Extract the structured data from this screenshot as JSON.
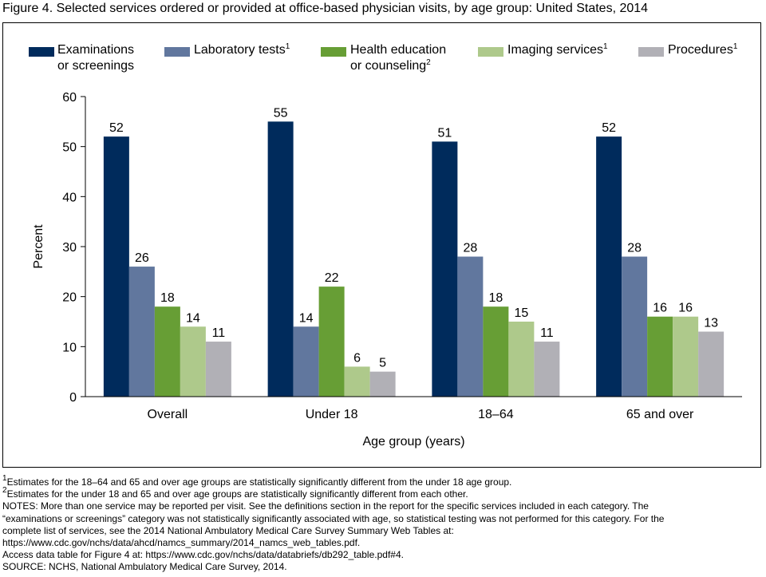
{
  "title": "Figure 4. Selected services ordered or provided at office-based physician visits, by age group: United States, 2014",
  "legend": [
    {
      "line1": "Examinations",
      "line2": "or screenings",
      "sup": ""
    },
    {
      "line1": "Laboratory tests",
      "line2": "",
      "sup": "1"
    },
    {
      "line1": "Health education",
      "line2": "or counseling",
      "sup": "2"
    },
    {
      "line1": "Imaging services",
      "line2": "",
      "sup": "1"
    },
    {
      "line1": "Procedures",
      "line2": "",
      "sup": "1"
    }
  ],
  "chart_data": {
    "type": "bar",
    "categories": [
      "Overall",
      "Under 18",
      "18–64",
      "65 and over"
    ],
    "series": [
      {
        "name": "Examinations or screenings",
        "color": "#002b5c",
        "values": [
          52,
          55,
          51,
          52
        ]
      },
      {
        "name": "Laboratory tests",
        "color": "#61779e",
        "values": [
          26,
          14,
          28,
          28
        ]
      },
      {
        "name": "Health education or counseling",
        "color": "#679e35",
        "values": [
          18,
          22,
          18,
          16
        ]
      },
      {
        "name": "Imaging services",
        "color": "#aec98b",
        "values": [
          14,
          6,
          15,
          16
        ]
      },
      {
        "name": "Procedures",
        "color": "#b1b0b6",
        "values": [
          11,
          5,
          11,
          13
        ]
      }
    ],
    "ylabel": "Percent",
    "xlabel": "Age group (years)",
    "ylim": [
      0,
      60
    ],
    "yticks": [
      0,
      10,
      20,
      30,
      40,
      50,
      60
    ],
    "grid": false,
    "legend_position": "top"
  },
  "notes": [
    {
      "sup": "1",
      "text": "Estimates for the 18–64 and 65 and over age groups are statistically significantly different from the under 18 age group."
    },
    {
      "sup": "2",
      "text": "Estimates for the under 18 and 65 and over age groups are statistically significantly different from each other."
    },
    {
      "sup": "",
      "text": "NOTES: More than one service may be reported per visit. See the definitions section in the report for the specific services included in each category. The"
    },
    {
      "sup": "",
      "text": "“examinations or screenings” category was not statistically significantly associated with age, so statistical testing was not performed for this category. For the"
    },
    {
      "sup": "",
      "text": "complete list of services, see the 2014 National Ambulatory Medical Care Survey Summary Web Tables at:"
    },
    {
      "sup": "",
      "text": "https://www.cdc.gov/nchs/data/ahcd/namcs_summary/2014_namcs_web_tables.pdf."
    },
    {
      "sup": "",
      "text": "Access data table for Figure 4 at: https://www.cdc.gov/nchs/data/databriefs/db292_table.pdf#4."
    },
    {
      "sup": "",
      "text": "SOURCE: NCHS, National Ambulatory Medical Care Survey, 2014."
    }
  ]
}
